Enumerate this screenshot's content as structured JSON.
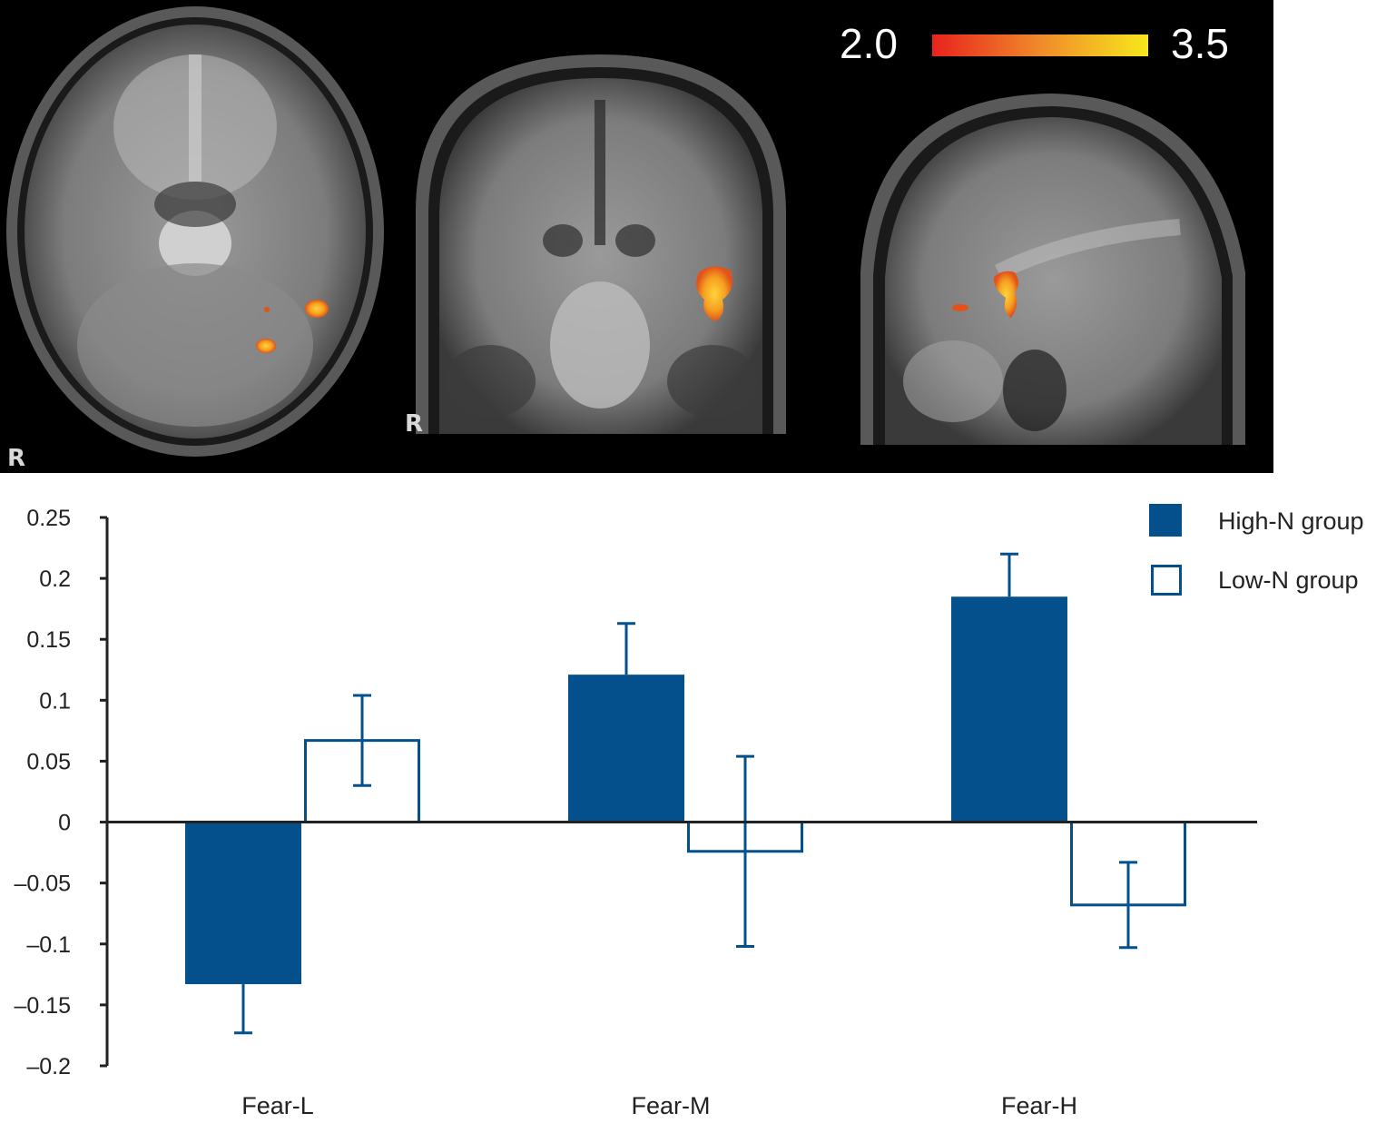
{
  "brain_images": {
    "colorbar": {
      "min_label": "2.0",
      "max_label": "3.5",
      "color_low": "#e8231d",
      "color_high": "#f7e81c"
    },
    "panels": [
      {
        "view": "axial",
        "orientation_label": "R"
      },
      {
        "view": "coronal",
        "orientation_label": "R"
      },
      {
        "view": "sagittal",
        "orientation_label": ""
      }
    ]
  },
  "chart_data": {
    "type": "bar",
    "categories": [
      "Fear-L",
      "Fear-M",
      "Fear-H"
    ],
    "series": [
      {
        "name": "High-N group",
        "values": [
          -0.133,
          0.121,
          0.185
        ],
        "error": [
          0.04,
          0.042,
          0.035
        ],
        "fill": "#03508c",
        "style": "filled"
      },
      {
        "name": "Low-N group",
        "values": [
          0.067,
          -0.024,
          -0.068
        ],
        "error": [
          0.037,
          0.078,
          0.035
        ],
        "fill": "#ffffff",
        "style": "outline"
      }
    ],
    "ylim": [
      -0.2,
      0.25
    ],
    "yticks": [
      0.25,
      0.2,
      0.15,
      0.1,
      0.05,
      0,
      -0.05,
      -0.1,
      -0.15,
      -0.2
    ],
    "ytick_labels": [
      "0.25",
      "0.2",
      "0.15",
      "0.1",
      "0.05",
      "0",
      "–0.05",
      "–0.1",
      "–0.15",
      "–0.2"
    ],
    "legend_position": "top-right",
    "bar_color": "#03508c",
    "grid": false
  }
}
